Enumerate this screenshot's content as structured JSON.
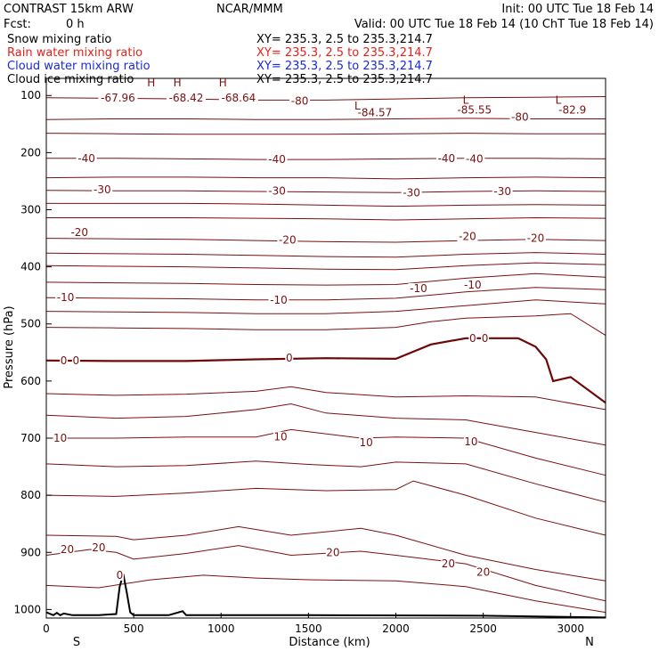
{
  "header": {
    "model": "CONTRAST 15km ARW",
    "org": "NCAR/MMM",
    "init": "Init: 00 UTC Tue 18 Feb 14",
    "fcst_label": "Fcst:",
    "fcst_value": "0 h",
    "valid": "Valid: 00 UTC Tue 18 Feb 14 (10 ChT Tue 18 Feb 14)"
  },
  "legend": [
    {
      "label": "Snow mixing ratio",
      "xy": "XY= 235.3,  2.5 to 235.3,214.7",
      "color": "#000000"
    },
    {
      "label": "Rain water mixing ratio",
      "xy": "XY= 235.3,  2.5 to 235.3,214.7",
      "color": "#e8201a"
    },
    {
      "label": "Cloud water mixing ratio",
      "xy": "XY= 235.3,  2.5 to 235.3,214.7",
      "color": "#1a2ad8"
    },
    {
      "label": "Cloud ice mixing ratio",
      "xy": "XY= 235.3,  2.5 to 235.3,214.7",
      "color": "#000000"
    }
  ],
  "colors": {
    "contour": "#7a1010",
    "zero": "#6e0808",
    "terrain": "#000000",
    "frame": "#000000"
  },
  "chart_data": {
    "type": "line",
    "xlabel": "Distance (km)",
    "ylabel": "Pressure (hPa)",
    "xlim": [
      0,
      3200
    ],
    "ylim": [
      1015,
      70
    ],
    "xticks": [
      0,
      500,
      1000,
      1500,
      2000,
      2500,
      3000
    ],
    "yticks": [
      100,
      200,
      300,
      400,
      500,
      600,
      700,
      800,
      900,
      1000
    ],
    "end_labels": {
      "left": "S",
      "right": "N"
    },
    "series": [
      {
        "x": [
          0,
          400,
          800,
          1200,
          1600,
          2000,
          2400,
          2800,
          3200
        ],
        "y": [
          104,
          105,
          106,
          108,
          108,
          106,
          104,
          103,
          102
        ]
      },
      {
        "x": [
          0,
          400,
          800,
          1200,
          1600,
          2000,
          2400,
          2800,
          3200
        ],
        "y": [
          142,
          141,
          141,
          142,
          142,
          141,
          140,
          141,
          141
        ]
      },
      {
        "x": [
          0,
          400,
          800,
          1200,
          1600,
          2000,
          2400,
          2800,
          3200
        ],
        "y": [
          166,
          167,
          168,
          168,
          168,
          167,
          166,
          167,
          167
        ]
      },
      {
        "x": [
          0,
          400,
          800,
          1200,
          1600,
          2000,
          2400,
          2800,
          3200
        ],
        "y": [
          210,
          210,
          211,
          212,
          212,
          211,
          210,
          210,
          211
        ]
      },
      {
        "x": [
          0,
          400,
          800,
          1200,
          1600,
          2000,
          2400,
          2800,
          3200
        ],
        "y": [
          244,
          243,
          243,
          244,
          244,
          246,
          244,
          243,
          244
        ]
      },
      {
        "x": [
          0,
          400,
          800,
          1200,
          1600,
          2000,
          2400,
          2800,
          3200
        ],
        "y": [
          266,
          267,
          267,
          268,
          269,
          270,
          268,
          267,
          268
        ]
      },
      {
        "x": [
          0,
          400,
          800,
          1200,
          1600,
          2000,
          2400,
          2800,
          3200
        ],
        "y": [
          289,
          289,
          289,
          290,
          292,
          294,
          292,
          291,
          292
        ]
      },
      {
        "x": [
          0,
          400,
          800,
          1200,
          1600,
          2000,
          2400,
          2800,
          3200
        ],
        "y": [
          314,
          314,
          314,
          315,
          316,
          318,
          316,
          314,
          315
        ]
      },
      {
        "x": [
          0,
          400,
          800,
          1200,
          1600,
          2000,
          2400,
          2800,
          3200
        ],
        "y": [
          350,
          351,
          352,
          354,
          356,
          357,
          354,
          352,
          354
        ]
      },
      {
        "x": [
          0,
          400,
          800,
          1200,
          1600,
          2000,
          2400,
          2800,
          3200
        ],
        "y": [
          376,
          377,
          378,
          380,
          382,
          383,
          378,
          375,
          378
        ]
      },
      {
        "x": [
          0,
          400,
          800,
          1200,
          1600,
          2000,
          2400,
          2800,
          3200
        ],
        "y": [
          398,
          399,
          400,
          402,
          404,
          405,
          398,
          393,
          396
        ]
      },
      {
        "x": [
          0,
          400,
          800,
          1200,
          1600,
          2000,
          2400,
          2800,
          3200
        ],
        "y": [
          427,
          428,
          429,
          431,
          432,
          431,
          420,
          412,
          418
        ]
      },
      {
        "x": [
          0,
          400,
          800,
          1200,
          1600,
          2000,
          2400,
          2800,
          3200
        ],
        "y": [
          454,
          455,
          456,
          458,
          458,
          455,
          444,
          436,
          440
        ]
      },
      {
        "x": [
          0,
          400,
          800,
          1200,
          1600,
          2000,
          2400,
          2800,
          3200
        ],
        "y": [
          478,
          479,
          480,
          482,
          482,
          478,
          468,
          458,
          465
        ]
      },
      {
        "x": [
          0,
          400,
          800,
          1200,
          1600,
          2000,
          2200,
          2400,
          2800,
          3000,
          3200
        ],
        "y": [
          506,
          507,
          508,
          510,
          510,
          506,
          496,
          490,
          486,
          482,
          520
        ]
      },
      {
        "x": [
          0,
          400,
          800,
          1200,
          1600,
          2000,
          2200,
          2400,
          2700,
          2800,
          2860,
          2900,
          3000,
          3200
        ],
        "y": [
          564,
          565,
          565,
          562,
          560,
          561,
          536,
          525,
          525,
          540,
          562,
          600,
          593,
          638
        ]
      },
      {
        "x": [
          0,
          400,
          800,
          1200,
          1400,
          1600,
          2000,
          2400,
          2800,
          3200
        ],
        "y": [
          622,
          625,
          623,
          618,
          610,
          620,
          628,
          626,
          628,
          650
        ]
      },
      {
        "x": [
          0,
          400,
          800,
          1200,
          1400,
          1600,
          2000,
          2400,
          2800,
          3200
        ],
        "y": [
          660,
          665,
          662,
          650,
          640,
          656,
          665,
          668,
          690,
          712
        ]
      },
      {
        "x": [
          0,
          400,
          800,
          1200,
          1400,
          1800,
          2000,
          2400,
          2800,
          3200
        ],
        "y": [
          700,
          700,
          698,
          698,
          685,
          700,
          698,
          700,
          735,
          765
        ]
      },
      {
        "x": [
          0,
          400,
          800,
          1200,
          1500,
          1800,
          2000,
          2400,
          2800,
          3200
        ],
        "y": [
          745,
          750,
          748,
          740,
          746,
          750,
          742,
          745,
          780,
          812
        ]
      },
      {
        "x": [
          0,
          400,
          800,
          1200,
          1600,
          2000,
          2100,
          2400,
          2800,
          3200
        ],
        "y": [
          800,
          802,
          796,
          788,
          792,
          790,
          775,
          800,
          840,
          870
        ]
      },
      {
        "x": [
          0,
          400,
          500,
          800,
          1100,
          1400,
          1800,
          2000,
          2400,
          2800,
          3200
        ],
        "y": [
          870,
          872,
          878,
          870,
          855,
          870,
          858,
          870,
          905,
          930,
          950
        ]
      },
      {
        "x": [
          0,
          250,
          400,
          500,
          800,
          1100,
          1400,
          1800,
          2000,
          2400,
          2800,
          3200
        ],
        "y": [
          905,
          895,
          900,
          912,
          902,
          888,
          905,
          898,
          905,
          920,
          958,
          985
        ]
      },
      {
        "x": [
          0,
          300,
          600,
          900,
          1200,
          1500,
          2000,
          2400,
          2800,
          3200
        ],
        "y": [
          958,
          962,
          948,
          940,
          945,
          948,
          950,
          960,
          985,
          1005
        ]
      }
    ],
    "terrain": {
      "x": [
        0,
        40,
        60,
        80,
        100,
        150,
        300,
        400,
        420,
        440,
        460,
        480,
        500,
        700,
        780,
        800,
        1500,
        2500,
        3200
      ],
      "y": [
        1005,
        1010,
        1006,
        1010,
        1007,
        1010,
        1010,
        1008,
        960,
        938,
        970,
        1005,
        1010,
        1010,
        1003,
        1010,
        1010,
        1011,
        1014
      ]
    },
    "contour_labels": [
      {
        "text": "-67.96",
        "x": 410,
        "p": 104
      },
      {
        "text": "-68.42",
        "x": 800,
        "p": 104
      },
      {
        "text": "-68.64",
        "x": 1100,
        "p": 104
      },
      {
        "text": "-80",
        "x": 1450,
        "p": 110
      },
      {
        "text": "-84.57",
        "x": 1880,
        "p": 130
      },
      {
        "text": "-85.55",
        "x": 2450,
        "p": 125
      },
      {
        "text": "-80",
        "x": 2710,
        "p": 138
      },
      {
        "text": "-82.9",
        "x": 3010,
        "p": 125
      },
      {
        "text": "-40",
        "x": 230,
        "p": 210
      },
      {
        "text": "-40",
        "x": 1320,
        "p": 212
      },
      {
        "text": "-40",
        "x": 2290,
        "p": 210
      },
      {
        "text": "-40",
        "x": 2450,
        "p": 211
      },
      {
        "text": "-30",
        "x": 320,
        "p": 265
      },
      {
        "text": "-30",
        "x": 1320,
        "p": 267
      },
      {
        "text": "-30",
        "x": 2090,
        "p": 270
      },
      {
        "text": "-30",
        "x": 2610,
        "p": 268
      },
      {
        "text": "-20",
        "x": 190,
        "p": 340
      },
      {
        "text": "-20",
        "x": 1380,
        "p": 353
      },
      {
        "text": "-20",
        "x": 2410,
        "p": 347
      },
      {
        "text": "-20",
        "x": 2800,
        "p": 350
      },
      {
        "text": "-10",
        "x": 110,
        "p": 454
      },
      {
        "text": "-10",
        "x": 1330,
        "p": 458
      },
      {
        "text": "-10",
        "x": 2130,
        "p": 438
      },
      {
        "text": "-10",
        "x": 2440,
        "p": 432
      },
      {
        "text": "0",
        "x": 100,
        "p": 564
      },
      {
        "text": "0",
        "x": 170,
        "p": 564
      },
      {
        "text": "0",
        "x": 1390,
        "p": 560
      },
      {
        "text": "0",
        "x": 2440,
        "p": 525
      },
      {
        "text": "0",
        "x": 2510,
        "p": 525
      },
      {
        "text": "10",
        "x": 80,
        "p": 700
      },
      {
        "text": "10",
        "x": 1340,
        "p": 698
      },
      {
        "text": "10",
        "x": 1830,
        "p": 708
      },
      {
        "text": "10",
        "x": 2430,
        "p": 706
      },
      {
        "text": "20",
        "x": 120,
        "p": 895
      },
      {
        "text": "20",
        "x": 300,
        "p": 892
      },
      {
        "text": "20",
        "x": 1640,
        "p": 900
      },
      {
        "text": "20",
        "x": 2300,
        "p": 920
      },
      {
        "text": "20",
        "x": 2500,
        "p": 935
      },
      {
        "text": "0",
        "x": 420,
        "p": 940
      }
    ],
    "markers": [
      {
        "text": "H",
        "x": 600,
        "p": 78
      },
      {
        "text": "H",
        "x": 750,
        "p": 78
      },
      {
        "text": "H",
        "x": 1010,
        "p": 78
      },
      {
        "text": "L",
        "x": 1780,
        "p": 118
      },
      {
        "text": "L",
        "x": 2400,
        "p": 108
      },
      {
        "text": "L",
        "x": 2930,
        "p": 108
      }
    ]
  }
}
